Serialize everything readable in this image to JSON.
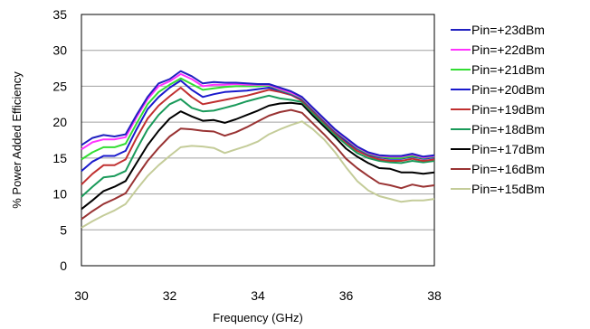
{
  "chart_data": {
    "type": "line",
    "title": "",
    "xlabel": "Frequency (GHz)",
    "ylabel": "% Power Added Efficiency",
    "xlim": [
      30,
      38
    ],
    "ylim": [
      0,
      35
    ],
    "xticks": [
      "30",
      "32",
      "34",
      "36",
      "38"
    ],
    "yticks": [
      "0",
      "5",
      "10",
      "15",
      "20",
      "25",
      "30",
      "35"
    ],
    "grid": "horizontal",
    "legend_position": "right",
    "x": [
      30,
      30.25,
      30.5,
      30.75,
      31,
      31.25,
      31.5,
      31.75,
      32,
      32.25,
      32.5,
      32.75,
      33,
      33.25,
      33.5,
      33.75,
      34,
      34.25,
      34.5,
      34.75,
      35,
      35.25,
      35.5,
      35.75,
      36,
      36.25,
      36.5,
      36.75,
      37,
      37.25,
      37.5,
      37.75,
      38
    ],
    "series": [
      {
        "name": "Pin=+23dBm",
        "color": "#2020c0",
        "values": [
          16.8,
          17.8,
          18.2,
          18.0,
          18.3,
          21.0,
          23.5,
          25.4,
          26.0,
          27.1,
          26.4,
          25.4,
          25.6,
          25.5,
          25.5,
          25.4,
          25.3,
          25.3,
          24.8,
          24.3,
          23.5,
          22.0,
          20.5,
          19.0,
          17.8,
          16.6,
          15.8,
          15.4,
          15.3,
          15.3,
          15.6,
          15.2,
          15.4
        ]
      },
      {
        "name": "Pin=+22dBm",
        "color": "#ff33ff",
        "values": [
          16.2,
          17.2,
          17.6,
          17.6,
          17.9,
          20.7,
          23.2,
          25.0,
          25.7,
          26.7,
          26.0,
          25.0,
          25.2,
          25.2,
          25.3,
          25.2,
          25.2,
          25.2,
          24.6,
          24.1,
          23.4,
          21.9,
          20.4,
          18.9,
          17.7,
          16.5,
          15.7,
          15.3,
          15.2,
          15.2,
          15.5,
          15.1,
          15.3
        ]
      },
      {
        "name": "Pin=+21dBm",
        "color": "#33dd33",
        "values": [
          14.8,
          15.8,
          16.5,
          16.5,
          17.0,
          19.8,
          22.5,
          24.2,
          25.2,
          26.1,
          25.3,
          24.5,
          24.7,
          24.9,
          25.0,
          25.0,
          25.0,
          25.1,
          24.5,
          24.0,
          23.3,
          21.8,
          20.3,
          18.8,
          17.6,
          16.4,
          15.6,
          15.2,
          15.0,
          15.0,
          15.3,
          15.0,
          15.2
        ]
      },
      {
        "name": "Pin=+20dBm",
        "color": "#1a1acc",
        "values": [
          13.2,
          14.5,
          15.3,
          15.3,
          16.0,
          19.0,
          21.8,
          23.5,
          24.8,
          25.8,
          24.5,
          23.5,
          23.9,
          24.2,
          24.3,
          24.4,
          24.6,
          24.8,
          24.4,
          23.9,
          23.2,
          21.7,
          20.2,
          18.7,
          17.4,
          16.3,
          15.5,
          15.1,
          14.9,
          14.9,
          15.2,
          14.9,
          15.1
        ]
      },
      {
        "name": "Pin=+19dBm",
        "color": "#c03030",
        "values": [
          11.3,
          12.8,
          14.0,
          14.0,
          14.8,
          17.8,
          20.5,
          22.3,
          23.6,
          24.8,
          23.5,
          22.5,
          22.8,
          23.1,
          23.4,
          23.7,
          24.1,
          24.5,
          24.2,
          23.8,
          23.0,
          21.5,
          20.0,
          18.5,
          17.2,
          16.0,
          15.3,
          14.8,
          14.6,
          14.6,
          14.9,
          14.6,
          14.8
        ]
      },
      {
        "name": "Pin=+18dBm",
        "color": "#1a9a5a",
        "values": [
          9.6,
          11.0,
          12.3,
          12.5,
          13.2,
          16.2,
          19.0,
          21.0,
          22.5,
          23.2,
          22.0,
          21.5,
          21.6,
          22.0,
          22.4,
          22.9,
          23.3,
          23.7,
          23.3,
          23.1,
          22.8,
          21.2,
          19.7,
          18.2,
          16.9,
          15.7,
          15.0,
          14.6,
          14.4,
          14.3,
          14.6,
          14.4,
          14.6
        ]
      },
      {
        "name": "Pin=+17dBm",
        "color": "#000000",
        "values": [
          7.9,
          9.1,
          10.4,
          11.0,
          11.8,
          14.3,
          16.8,
          18.8,
          20.5,
          21.5,
          20.8,
          20.2,
          20.3,
          19.9,
          20.4,
          21.0,
          21.6,
          22.3,
          22.6,
          22.7,
          22.5,
          20.9,
          19.4,
          17.9,
          16.3,
          15.2,
          14.3,
          13.6,
          13.5,
          13.0,
          13.0,
          12.8,
          13.0
        ]
      },
      {
        "name": "Pin=+16dBm",
        "color": "#993333",
        "values": [
          6.5,
          7.6,
          8.6,
          9.3,
          10.1,
          12.4,
          14.6,
          16.4,
          18.0,
          19.1,
          19.0,
          18.8,
          18.7,
          18.1,
          18.6,
          19.3,
          20.1,
          20.9,
          21.4,
          21.7,
          21.3,
          19.8,
          18.3,
          16.7,
          14.9,
          13.6,
          12.5,
          11.5,
          11.2,
          10.8,
          11.3,
          11.0,
          11.2
        ]
      },
      {
        "name": "Pin=+15dBm",
        "color": "#c4cc99",
        "values": [
          5.3,
          6.2,
          7.0,
          7.7,
          8.6,
          10.6,
          12.5,
          14.0,
          15.3,
          16.5,
          16.7,
          16.6,
          16.4,
          15.7,
          16.2,
          16.7,
          17.3,
          18.3,
          19.0,
          19.6,
          20.1,
          19.0,
          17.6,
          15.8,
          13.7,
          11.8,
          10.5,
          9.7,
          9.3,
          8.9,
          9.1,
          9.1,
          9.3
        ]
      }
    ]
  }
}
